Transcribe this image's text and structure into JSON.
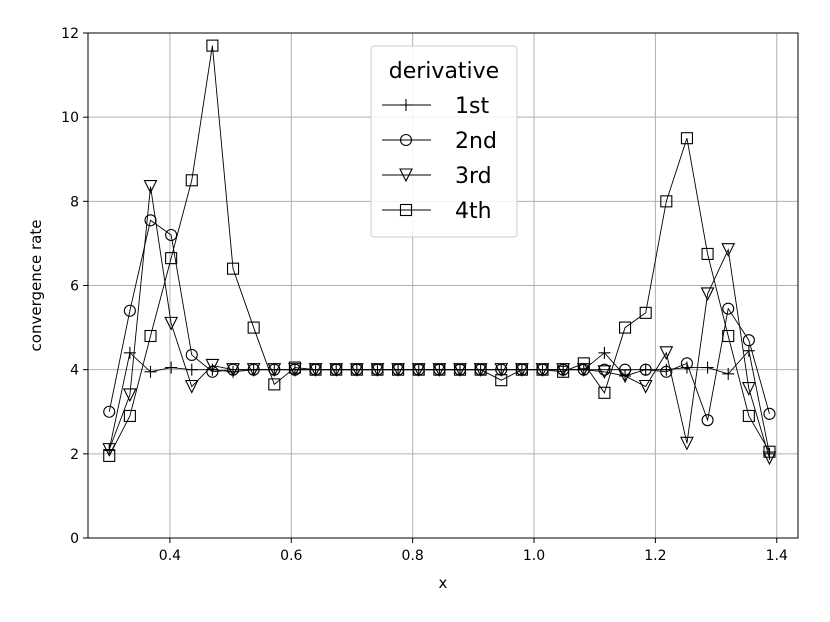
{
  "chart_data": {
    "type": "line",
    "xlabel": "x",
    "ylabel": "convergence rate",
    "xlim": [
      0.265,
      1.435
    ],
    "ylim": [
      0,
      12
    ],
    "xticks": [
      0.4,
      0.6,
      0.8,
      1.0,
      1.2,
      1.4
    ],
    "xtick_labels": [
      "0.4",
      "0.6",
      "0.8",
      "1.0",
      "1.2",
      "1.4"
    ],
    "yticks": [
      0,
      2,
      4,
      6,
      8,
      10,
      12
    ],
    "ytick_labels": [
      "0",
      "2",
      "4",
      "6",
      "8",
      "10",
      "12"
    ],
    "grid": true,
    "legend": {
      "title": "derivative",
      "placement": "top-center",
      "entries": [
        "1st",
        "2nd",
        "3rd",
        "4th"
      ]
    },
    "x": [
      0.3,
      0.334,
      0.368,
      0.402,
      0.436,
      0.47,
      0.504,
      0.538,
      0.572,
      0.606,
      0.64,
      0.674,
      0.708,
      0.742,
      0.776,
      0.81,
      0.844,
      0.878,
      0.912,
      0.946,
      0.98,
      1.014,
      1.048,
      1.082,
      1.116,
      1.15,
      1.184,
      1.218,
      1.252,
      1.286,
      1.32,
      1.354,
      1.388
    ],
    "series": [
      {
        "name": "1st",
        "marker": "plus",
        "x": [
          0.3,
          0.334,
          0.368,
          0.402,
          0.436,
          0.47,
          0.504,
          0.538,
          0.572,
          0.606,
          0.64,
          0.674,
          0.708,
          0.742,
          0.776,
          0.81,
          0.844,
          0.878,
          0.912,
          0.946,
          0.98,
          1.014,
          1.048,
          1.082,
          1.116,
          1.15,
          1.184,
          1.218,
          1.252,
          1.286,
          1.32,
          1.354,
          1.388
        ],
        "values": [
          2.1,
          4.4,
          3.95,
          4.05,
          4.0,
          4.0,
          3.95,
          4.0,
          4.0,
          4.0,
          4.0,
          4.0,
          4.0,
          4.0,
          4.0,
          4.0,
          4.0,
          4.0,
          4.0,
          4.0,
          4.0,
          4.0,
          4.0,
          4.0,
          4.4,
          3.85,
          4.0,
          4.0,
          4.05,
          4.05,
          3.9,
          4.45,
          2.0
        ]
      },
      {
        "name": "2nd",
        "marker": "circle",
        "x": [
          0.3,
          0.334,
          0.368,
          0.402,
          0.436,
          0.47,
          0.504,
          0.538,
          0.572,
          0.606,
          0.64,
          0.674,
          0.708,
          0.742,
          0.776,
          0.81,
          0.844,
          0.878,
          0.912,
          0.946,
          0.98,
          1.014,
          1.048,
          1.082,
          1.116,
          1.15,
          1.184,
          1.218,
          1.252,
          1.286,
          1.32,
          1.354,
          1.388
        ],
        "values": [
          3.0,
          5.4,
          7.55,
          7.2,
          4.35,
          3.95,
          4.0,
          4.0,
          4.0,
          4.0,
          4.0,
          4.0,
          4.0,
          4.0,
          4.0,
          4.0,
          4.0,
          4.0,
          4.0,
          4.0,
          4.0,
          4.0,
          4.0,
          4.0,
          4.0,
          4.0,
          4.0,
          3.95,
          4.15,
          2.8,
          5.45,
          4.7,
          2.95
        ]
      },
      {
        "name": "3rd",
        "marker": "triangle-down",
        "x": [
          0.3,
          0.334,
          0.368,
          0.402,
          0.436,
          0.47,
          0.504,
          0.538,
          0.572,
          0.606,
          0.64,
          0.674,
          0.708,
          0.742,
          0.776,
          0.81,
          0.844,
          0.878,
          0.912,
          0.946,
          0.98,
          1.014,
          1.048,
          1.082,
          1.116,
          1.15,
          1.184,
          1.218,
          1.252,
          1.286,
          1.32,
          1.354,
          1.388
        ],
        "values": [
          2.1,
          3.4,
          8.35,
          5.1,
          3.6,
          4.1,
          4.0,
          4.0,
          4.0,
          4.0,
          4.0,
          4.0,
          4.0,
          4.0,
          4.0,
          4.0,
          4.0,
          4.0,
          4.0,
          4.0,
          4.0,
          4.0,
          4.0,
          4.0,
          3.95,
          3.85,
          3.6,
          4.4,
          2.25,
          5.8,
          6.85,
          3.55,
          1.9
        ]
      },
      {
        "name": "4th",
        "marker": "square",
        "x": [
          0.3,
          0.334,
          0.368,
          0.402,
          0.436,
          0.47,
          0.504,
          0.538,
          0.572,
          0.606,
          0.64,
          0.674,
          0.708,
          0.742,
          0.776,
          0.81,
          0.844,
          0.878,
          0.912,
          0.946,
          0.98,
          1.014,
          1.048,
          1.082,
          1.116,
          1.15,
          1.184,
          1.218,
          1.252,
          1.286,
          1.32,
          1.354,
          1.388
        ],
        "values": [
          1.95,
          2.9,
          4.8,
          6.65,
          8.5,
          11.7,
          6.4,
          5.0,
          3.65,
          4.05,
          4.0,
          4.0,
          4.0,
          4.0,
          4.0,
          4.0,
          4.0,
          4.0,
          4.0,
          3.75,
          4.0,
          4.0,
          3.95,
          4.15,
          3.45,
          5.0,
          5.35,
          8.0,
          9.5,
          6.75,
          4.8,
          2.9,
          2.05
        ]
      }
    ]
  }
}
